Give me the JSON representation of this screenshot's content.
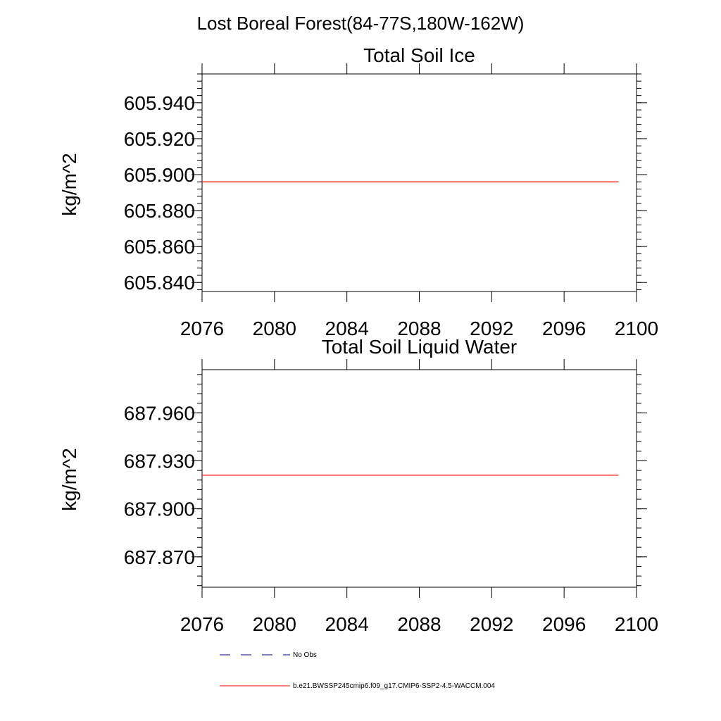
{
  "figure": {
    "title": "Lost Boreal Forest(84-77S,180W-162W)",
    "colors": {
      "model_line": "#ff0000",
      "obs_line": "#00008b",
      "axis": "#000000"
    }
  },
  "chart_data": [
    {
      "type": "line",
      "title": "Total Soil Ice",
      "xlabel": "",
      "ylabel": "kg/m^2",
      "xlim": [
        2076,
        2100
      ],
      "ylim": [
        605.835,
        605.956
      ],
      "x_ticks": [
        2076,
        2080,
        2084,
        2088,
        2092,
        2096,
        2100
      ],
      "x_tick_labels": [
        "2076",
        "2080",
        "2084",
        "2088",
        "2092",
        "2096",
        "2100"
      ],
      "y_ticks": [
        605.84,
        605.86,
        605.88,
        605.9,
        605.92,
        605.94
      ],
      "y_tick_labels": [
        "605.840",
        "605.860",
        "605.880",
        "605.900",
        "605.920",
        "605.940"
      ],
      "grid": false,
      "series": [
        {
          "name": "b.e21.BWSSP245cmip6.f09_g17.CMIP6-SSP2-4.5-WACCM.004",
          "x": [
            2076,
            2099
          ],
          "y": [
            605.896,
            605.896
          ]
        }
      ]
    },
    {
      "type": "line",
      "title": "Total Soil Liquid Water",
      "xlabel": "",
      "ylabel": "kg/m^2",
      "xlim": [
        2076,
        2100
      ],
      "ylim": [
        687.851,
        687.987
      ],
      "x_ticks": [
        2076,
        2080,
        2084,
        2088,
        2092,
        2096,
        2100
      ],
      "x_tick_labels": [
        "2076",
        "2080",
        "2084",
        "2088",
        "2092",
        "2096",
        "2100"
      ],
      "y_ticks": [
        687.87,
        687.9,
        687.93,
        687.96
      ],
      "y_tick_labels": [
        "687.870",
        "687.900",
        "687.930",
        "687.960"
      ],
      "grid": false,
      "series": [
        {
          "name": "b.e21.BWSSP245cmip6.f09_g17.CMIP6-SSP2-4.5-WACCM.004",
          "x": [
            2076,
            2099
          ],
          "y": [
            687.921,
            687.921
          ]
        }
      ]
    }
  ],
  "legend": {
    "position": "bottom-left",
    "entries": [
      {
        "label": "No Obs",
        "style": "dashed",
        "color": "#00008b"
      },
      {
        "label": "b.e21.BWSSP245cmip6.f09_g17.CMIP6-SSP2-4.5-WACCM.004",
        "style": "solid",
        "color": "#ff0000"
      }
    ]
  }
}
